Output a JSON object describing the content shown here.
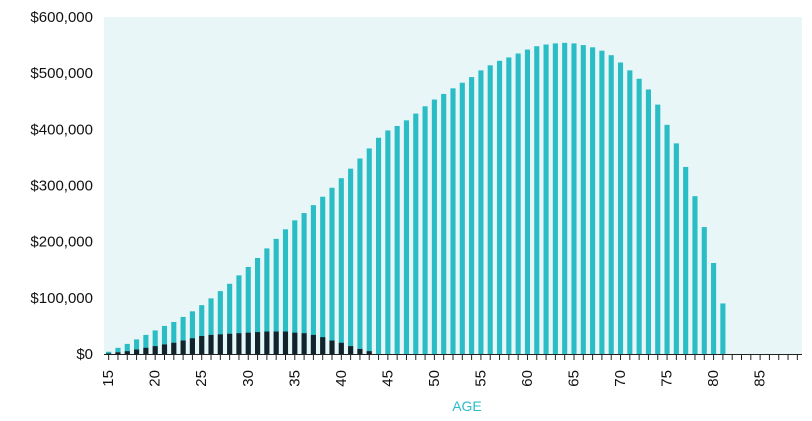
{
  "chart_data": {
    "type": "bar",
    "title": "",
    "xlabel": "AGE",
    "ylabel": "",
    "x_ticks": [
      15,
      20,
      25,
      30,
      35,
      40,
      45,
      50,
      55,
      60,
      65,
      70,
      75,
      80,
      85
    ],
    "y_ticks": [
      0,
      100000,
      200000,
      300000,
      400000,
      500000,
      600000
    ],
    "y_tick_labels": [
      "$0",
      "$100,000",
      "$200,000",
      "$300,000",
      "$400,000",
      "$500,000",
      "$600,000"
    ],
    "xlim": [
      15,
      89
    ],
    "ylim": [
      0,
      600000
    ],
    "grid": false,
    "colors": {
      "plot_background": "#e8f6f7",
      "teal": "#2bbdc6",
      "dark": "#14232b",
      "axis_label": "#2bbdc6",
      "tick_text": "#111111"
    },
    "x": [
      15,
      16,
      17,
      18,
      19,
      20,
      21,
      22,
      23,
      24,
      25,
      26,
      27,
      28,
      29,
      30,
      31,
      32,
      33,
      34,
      35,
      36,
      37,
      38,
      39,
      40,
      41,
      42,
      43,
      44,
      45,
      46,
      47,
      48,
      49,
      50,
      51,
      52,
      53,
      54,
      55,
      56,
      57,
      58,
      59,
      60,
      61,
      62,
      63,
      64,
      65,
      66,
      67,
      68,
      69,
      70,
      71,
      72,
      73,
      74,
      75,
      76,
      77,
      78,
      79,
      80,
      81,
      82,
      83,
      84,
      85,
      86,
      87,
      88,
      89
    ],
    "series": [
      {
        "color": "#2bbdc6",
        "values": [
          4000,
          11000,
          18000,
          26000,
          34000,
          42000,
          50000,
          57000,
          66000,
          76000,
          87000,
          99000,
          112000,
          125000,
          140000,
          155000,
          171000,
          188000,
          205000,
          222000,
          238000,
          251000,
          265000,
          280000,
          296000,
          313000,
          330000,
          348000,
          366000,
          385000,
          398000,
          406000,
          416000,
          428000,
          441000,
          453000,
          463000,
          473000,
          483000,
          493000,
          505000,
          514000,
          522000,
          528000,
          535000,
          542000,
          548000,
          551000,
          553000,
          554000,
          553000,
          550000,
          546000,
          540000,
          532000,
          519000,
          505000,
          490000,
          471000,
          444000,
          408000,
          375000,
          333000,
          281000,
          226000,
          162000,
          90000,
          0,
          0,
          0,
          0,
          0,
          0,
          0,
          0
        ]
      },
      {
        "color": "#14232b",
        "values": [
          1000,
          3000,
          5000,
          8000,
          11000,
          14000,
          17000,
          20000,
          24000,
          28000,
          32000,
          34000,
          35000,
          36000,
          37000,
          38000,
          39000,
          40000,
          40000,
          40000,
          38000,
          37000,
          34000,
          30000,
          24000,
          20000,
          14000,
          9000,
          5000,
          0,
          0,
          0,
          0,
          0,
          0,
          0,
          0,
          0,
          0,
          0,
          0,
          0,
          0,
          0,
          0,
          0,
          0,
          0,
          0,
          0,
          0,
          0,
          0,
          0,
          0,
          0,
          0,
          0,
          0,
          0,
          0,
          0,
          0,
          0,
          0,
          0,
          0,
          0,
          0,
          0,
          0,
          0,
          0,
          0,
          0
        ]
      }
    ]
  }
}
